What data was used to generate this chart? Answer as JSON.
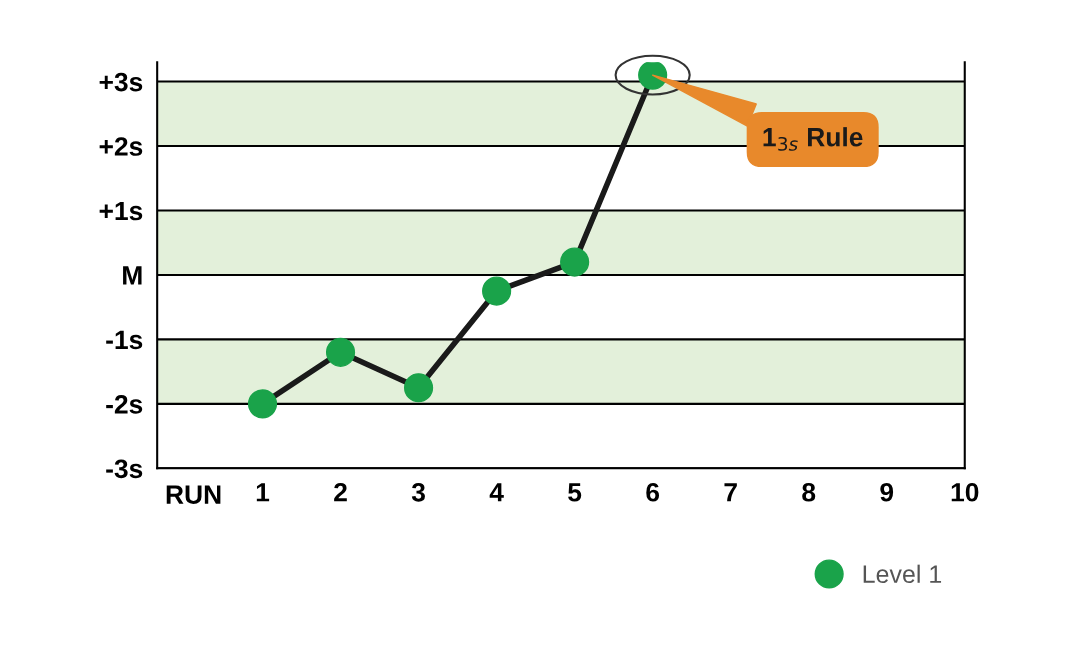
{
  "chart_data": {
    "type": "line",
    "xlabel": "RUN",
    "x": [
      1,
      2,
      3,
      4,
      5,
      6
    ],
    "series": [
      {
        "name": "Level 1",
        "color": "#1aa34a",
        "values": [
          -2.0,
          -1.2,
          -1.75,
          -0.25,
          0.2,
          3.1
        ]
      }
    ],
    "marker": "circle",
    "xlim": [
      -0.35,
      10
    ],
    "xticks": [
      1,
      2,
      3,
      4,
      5,
      6,
      7,
      8,
      9,
      10
    ],
    "ylim": [
      -3,
      3.3
    ],
    "yticks": [
      {
        "value": -3,
        "label": "-3s"
      },
      {
        "value": -2,
        "label": "-2s"
      },
      {
        "value": -1,
        "label": "-1s"
      },
      {
        "value": 0,
        "label": "M"
      },
      {
        "value": 1,
        "label": "+1s"
      },
      {
        "value": 2,
        "label": "+2s"
      },
      {
        "value": 3,
        "label": "+3s"
      }
    ],
    "bands": [
      {
        "axis": "y",
        "from": 2,
        "to": 3,
        "color": "#e3f0da"
      },
      {
        "axis": "y",
        "from": 0,
        "to": 1,
        "color": "#e3f0da"
      },
      {
        "axis": "y",
        "from": -2,
        "to": -1,
        "color": "#e3f0da"
      }
    ],
    "annotations": [
      {
        "text": "1$_{3s}$ Rule",
        "x": 6,
        "y": 3.1
      }
    ],
    "grid": "y",
    "legend": "bottom right"
  }
}
